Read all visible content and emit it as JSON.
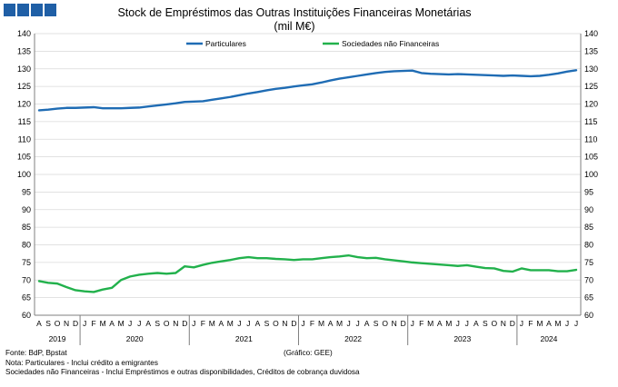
{
  "logo": {
    "color": "#1f5fa6",
    "blocks": 4
  },
  "chart_data": {
    "type": "line",
    "title": "Stock de Empréstimos das Outras Instituições Financeiras Monetárias",
    "subtitle": "(mil M€)",
    "ylim": [
      60,
      140
    ],
    "y_ticks": [
      60,
      65,
      70,
      75,
      80,
      85,
      90,
      95,
      100,
      105,
      110,
      115,
      120,
      125,
      130,
      135,
      140
    ],
    "y_tick_labels": [
      "60",
      "65",
      "70",
      "75",
      "80",
      "85",
      "90",
      "95",
      "100",
      "105",
      "110",
      "115",
      "120",
      "125",
      "130",
      "135",
      "140"
    ],
    "grid": true,
    "legend_position": "top",
    "month_labels": [
      "A",
      "S",
      "O",
      "N",
      "D",
      "J",
      "F",
      "M",
      "A",
      "M",
      "J",
      "J",
      "A",
      "S",
      "O",
      "N",
      "D",
      "J",
      "F",
      "M",
      "A",
      "M",
      "J",
      "J",
      "A",
      "S",
      "O",
      "N",
      "D",
      "J",
      "F",
      "M",
      "A",
      "M",
      "J",
      "J",
      "A",
      "S",
      "O",
      "N",
      "D",
      "J",
      "F",
      "M",
      "A",
      "M",
      "J",
      "J",
      "A",
      "S",
      "O",
      "N",
      "D",
      "J",
      "F",
      "M",
      "A",
      "M",
      "J",
      "J"
    ],
    "years": [
      {
        "label": "2019",
        "start": 0,
        "end": 5
      },
      {
        "label": "2020",
        "start": 5,
        "end": 17
      },
      {
        "label": "2021",
        "start": 17,
        "end": 29
      },
      {
        "label": "2022",
        "start": 29,
        "end": 41
      },
      {
        "label": "2023",
        "start": 41,
        "end": 53
      },
      {
        "label": "2024",
        "start": 53,
        "end": 60
      }
    ],
    "series": [
      {
        "name": "Particulares",
        "color": "#1f6cb4",
        "values": [
          118.2,
          118.4,
          118.7,
          118.9,
          118.9,
          119.0,
          119.1,
          118.8,
          118.8,
          118.8,
          118.9,
          119.0,
          119.3,
          119.6,
          119.9,
          120.2,
          120.6,
          120.7,
          120.8,
          121.2,
          121.6,
          122.0,
          122.5,
          123.0,
          123.4,
          123.9,
          124.3,
          124.6,
          125.0,
          125.3,
          125.6,
          126.1,
          126.7,
          127.2,
          127.6,
          128.0,
          128.4,
          128.8,
          129.1,
          129.3,
          129.4,
          129.5,
          128.8,
          128.6,
          128.5,
          128.4,
          128.5,
          128.4,
          128.3,
          128.2,
          128.1,
          128.0,
          128.1,
          128.0,
          127.9,
          128.0,
          128.3,
          128.7,
          129.2,
          129.6
        ]
      },
      {
        "name": "Sociedades não Financeiras",
        "color": "#22b14c",
        "values": [
          69.7,
          69.2,
          69.0,
          68.0,
          67.1,
          66.8,
          66.6,
          67.3,
          67.8,
          70.0,
          71.0,
          71.5,
          71.8,
          72.0,
          71.8,
          72.0,
          73.9,
          73.6,
          74.3,
          74.9,
          75.3,
          75.7,
          76.2,
          76.5,
          76.2,
          76.2,
          76.0,
          75.9,
          75.7,
          75.9,
          75.9,
          76.2,
          76.5,
          76.7,
          77.0,
          76.5,
          76.2,
          76.3,
          75.9,
          75.6,
          75.3,
          75.0,
          74.8,
          74.6,
          74.4,
          74.2,
          74.0,
          74.2,
          73.8,
          73.4,
          73.3,
          72.6,
          72.4,
          73.3,
          72.8,
          72.8,
          72.8,
          72.5,
          72.5,
          72.9
        ]
      }
    ]
  },
  "notes": {
    "source": "Fonte: BdP, Bpstat",
    "credit": "(Gráfico: GEE)",
    "note1": "Nota: Particulares - Inclui crédito a emigrantes",
    "note2": "Sociedades não Financeiras - Inclui Empréstimos e outras disponibilidades,  Créditos de cobrança duvidosa"
  }
}
